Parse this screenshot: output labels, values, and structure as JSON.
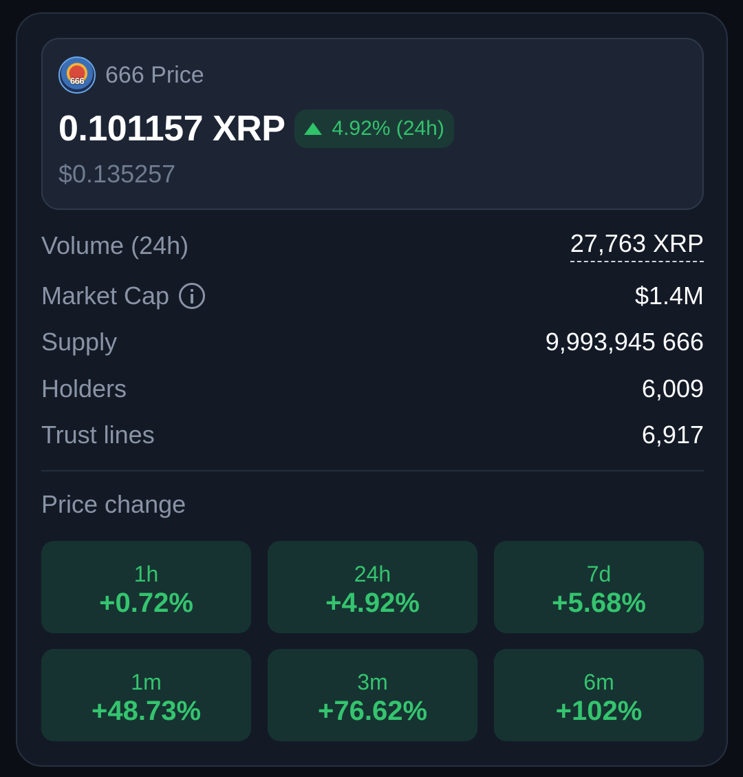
{
  "token": {
    "logo_text": "666",
    "name_label": "666 Price",
    "price": "0.101157 XRP",
    "change_24h": "4.92% (24h)",
    "price_usd": "$0.135257"
  },
  "stats": [
    {
      "label": "Volume (24h)",
      "value": "27,763 XRP"
    },
    {
      "label": "Market Cap",
      "value": "$1.4M"
    },
    {
      "label": "Supply",
      "value": "9,993,945 666"
    },
    {
      "label": "Holders",
      "value": "6,009"
    },
    {
      "label": "Trust lines",
      "value": "6,917"
    }
  ],
  "price_change": {
    "title": "Price change",
    "tiles": [
      {
        "period": "1h",
        "value": "+0.72%"
      },
      {
        "period": "24h",
        "value": "+4.92%"
      },
      {
        "period": "7d",
        "value": "+5.68%"
      },
      {
        "period": "1m",
        "value": "+48.73%"
      },
      {
        "period": "3m",
        "value": "+76.62%"
      },
      {
        "period": "6m",
        "value": "+102%"
      }
    ]
  },
  "colors": {
    "background": "#0b0f15",
    "card": "#131a26",
    "positive": "#35c46f",
    "positive_bg": "#163331"
  },
  "icons": [
    "token-logo",
    "triangle-up-icon",
    "info-icon"
  ]
}
